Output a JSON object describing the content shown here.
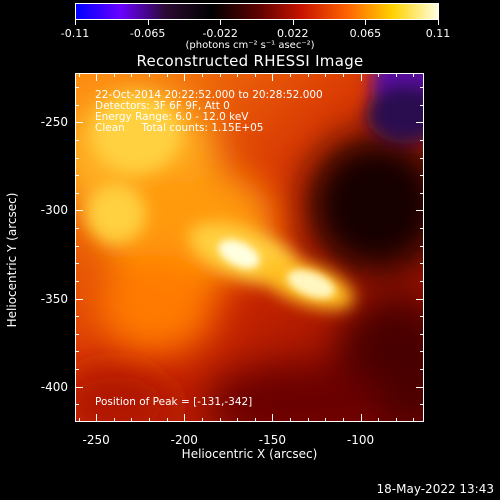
{
  "colorbar": {
    "tick_labels": [
      "-0.11",
      "-0.065",
      "-0.022",
      "0.022",
      "0.065",
      "0.11"
    ],
    "units": "(photons cm⁻² s⁻¹ asec⁻²)",
    "colors": [
      "#0000ff",
      "#6a00ff",
      "#2a0a30",
      "#000000",
      "#5a0000",
      "#c81400",
      "#ff6400",
      "#ffd200",
      "#ffffe0"
    ]
  },
  "title": "Reconstructed RHESSI Image",
  "info": {
    "line1": "22-Oct-2014 20:22:52.000 to 20:28:52.000",
    "line2": "Detectors: 3F 6F 9F, Att 0",
    "line3": "Energy Range: 6.0 - 12.0 keV",
    "line4": "Clean     Total counts: 1.15E+05"
  },
  "peak_text": "Position of Peak = [-131,-342]",
  "axes": {
    "xlabel": "Heliocentric X (arcsec)",
    "ylabel": "Heliocentric Y (arcsec)",
    "x_ticks": [
      "-250",
      "-200",
      "-150",
      "-100"
    ],
    "y_ticks": [
      "-250",
      "-300",
      "-350",
      "-400"
    ],
    "xlim": [
      -262,
      -64
    ],
    "ylim": [
      -420,
      -222
    ]
  },
  "footer_date": "18-May-2022 13:43"
}
